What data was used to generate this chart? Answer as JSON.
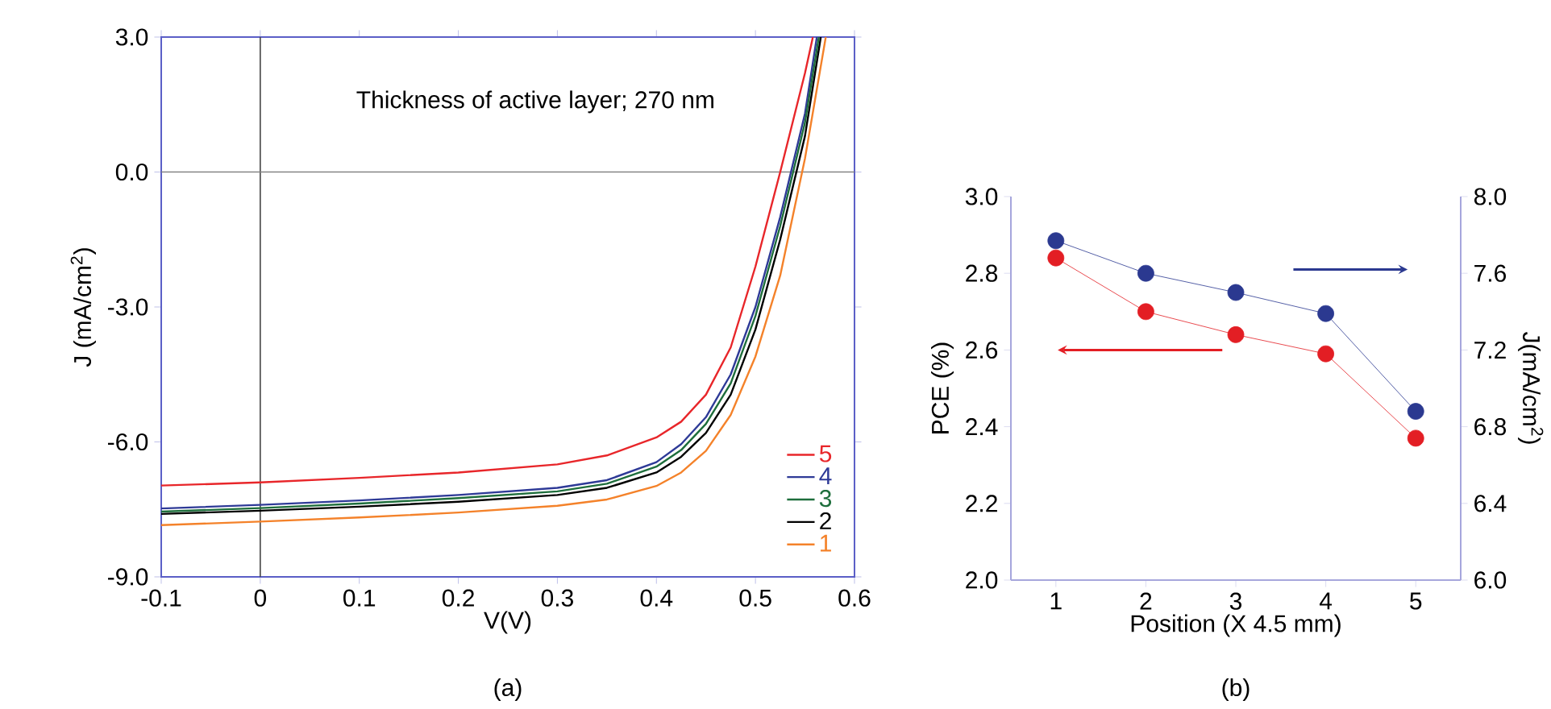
{
  "chart_data": [
    {
      "type": "line",
      "xlabel": "V(V)",
      "ylabel": "J (mA/cm$^{2}$)",
      "xlim": [
        -0.1,
        0.6
      ],
      "xticks": [
        -0.1,
        0,
        0.1,
        0.2,
        0.3,
        0.4,
        0.5,
        0.6
      ],
      "ylim": [
        -9,
        3
      ],
      "yticks": [
        {
          "value": -9,
          "label": "-9.0"
        },
        {
          "value": -6,
          "label": "-6.0"
        },
        {
          "value": -3,
          "label": "-3.0"
        },
        {
          "value": 0,
          "label": "0.0"
        },
        {
          "value": 3,
          "label": "3.0"
        }
      ],
      "legend": "bottom right",
      "ref_lines": [
        {
          "axis": "x",
          "value": 0,
          "color": "#444444"
        },
        {
          "axis": "y",
          "value": 0,
          "color": "#808080"
        }
      ],
      "annotations": [
        "Thickness of active layer; 270 nm",
        "(a)"
      ],
      "series": [
        {
          "name": "5",
          "color": "#e8262a",
          "x": [
            -0.1,
            0,
            0.1,
            0.2,
            0.3,
            0.35,
            0.4,
            0.425,
            0.45,
            0.475,
            0.5,
            0.525,
            0.55,
            0.558
          ],
          "values": [
            -6.97,
            -6.9,
            -6.8,
            -6.68,
            -6.5,
            -6.3,
            -5.9,
            -5.55,
            -4.95,
            -3.9,
            -2.1,
            0.0,
            2.2,
            3.0
          ]
        },
        {
          "name": "4",
          "color": "#2e3a97",
          "x": [
            -0.1,
            0,
            0.1,
            0.2,
            0.3,
            0.35,
            0.4,
            0.425,
            0.45,
            0.475,
            0.5,
            0.525,
            0.55,
            0.562
          ],
          "values": [
            -7.48,
            -7.4,
            -7.3,
            -7.18,
            -7.02,
            -6.85,
            -6.45,
            -6.05,
            -5.45,
            -4.5,
            -3.0,
            -1.0,
            1.3,
            3.0
          ]
        },
        {
          "name": "3",
          "color": "#1e6e3c",
          "x": [
            -0.1,
            0,
            0.1,
            0.2,
            0.3,
            0.35,
            0.4,
            0.425,
            0.45,
            0.475,
            0.5,
            0.525,
            0.55,
            0.564
          ],
          "values": [
            -7.55,
            -7.47,
            -7.37,
            -7.25,
            -7.1,
            -6.93,
            -6.55,
            -6.18,
            -5.6,
            -4.7,
            -3.2,
            -1.2,
            1.1,
            3.0
          ]
        },
        {
          "name": "2",
          "color": "#000000",
          "x": [
            -0.1,
            0,
            0.1,
            0.2,
            0.3,
            0.35,
            0.4,
            0.425,
            0.45,
            0.475,
            0.5,
            0.525,
            0.55,
            0.566
          ],
          "values": [
            -7.6,
            -7.53,
            -7.44,
            -7.33,
            -7.18,
            -7.02,
            -6.68,
            -6.33,
            -5.8,
            -4.95,
            -3.5,
            -1.5,
            0.8,
            3.0
          ]
        },
        {
          "name": "1",
          "color": "#f4822a",
          "x": [
            -0.1,
            0,
            0.1,
            0.2,
            0.3,
            0.35,
            0.4,
            0.425,
            0.45,
            0.475,
            0.5,
            0.525,
            0.55,
            0.571
          ],
          "values": [
            -7.85,
            -7.77,
            -7.68,
            -7.57,
            -7.42,
            -7.28,
            -6.98,
            -6.68,
            -6.2,
            -5.4,
            -4.1,
            -2.3,
            0.3,
            3.0
          ]
        }
      ]
    },
    {
      "type": "line",
      "xlabel": "Position (X 4.5 mm)",
      "ylabel": "PCE (%)",
      "y2label": "J(mA/cm$^{2}$)",
      "xlim": [
        0.5,
        5.5
      ],
      "xticks": [
        1,
        2,
        3,
        4,
        5
      ],
      "ylim": [
        2.0,
        3.0
      ],
      "yticks": [
        {
          "value": 2.0,
          "label": "2.0"
        },
        {
          "value": 2.2,
          "label": "2.2"
        },
        {
          "value": 2.4,
          "label": "2.4"
        },
        {
          "value": 2.6,
          "label": "2.6"
        },
        {
          "value": 2.8,
          "label": "2.8"
        },
        {
          "value": 3.0,
          "label": "3.0"
        }
      ],
      "y2lim": [
        6.0,
        8.0
      ],
      "y2ticks": [
        {
          "value": 6.0,
          "label": "6.0"
        },
        {
          "value": 6.4,
          "label": "6.4"
        },
        {
          "value": 6.8,
          "label": "6.8"
        },
        {
          "value": 7.2,
          "label": "7.2"
        },
        {
          "value": 7.6,
          "label": "7.6"
        },
        {
          "value": 8.0,
          "label": "8.0"
        }
      ],
      "marker": "circle",
      "annotations": [
        "(b)"
      ],
      "series": [
        {
          "color": "#e31e24",
          "x": [
            1,
            2,
            3,
            4,
            5
          ],
          "values": [
            2.84,
            2.7,
            2.64,
            2.59,
            2.37
          ]
        },
        {
          "color": "#2b3990",
          "axis": "y2",
          "x": [
            1,
            2,
            3,
            4,
            5
          ],
          "values": [
            7.77,
            7.6,
            7.5,
            7.39,
            6.88
          ]
        }
      ]
    }
  ]
}
